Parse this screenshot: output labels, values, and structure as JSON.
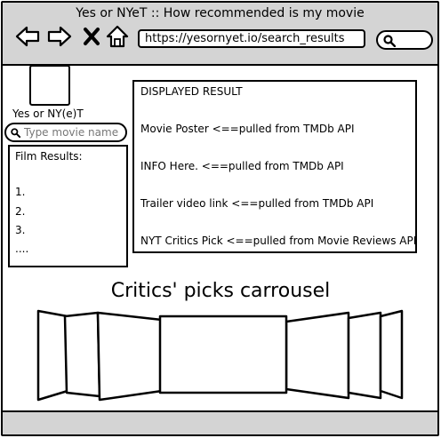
{
  "browser": {
    "title": "Yes or NYeT :: How recommended is my movie",
    "url": "https://yesornyet.io/search_results",
    "icons": [
      "back-arrow-icon",
      "forward-arrow-icon",
      "close-icon",
      "home-icon",
      "search-icon"
    ]
  },
  "sidebar": {
    "logo_text": "Yes or NY(e)T",
    "search_placeholder": "Type movie name",
    "results_title": "Film Results:",
    "results": [
      "1.",
      "2.",
      "3.",
      "...."
    ]
  },
  "display": {
    "heading": "DISPLAYED RESULT",
    "lines": [
      "Movie Poster   <==pulled from TMDb API",
      "INFO Here.  <==pulled from TMDb API",
      "Trailer video link <==pulled from TMDb API",
      "NYT Critics Pick  <==pulled from Movie Reviews API"
    ]
  },
  "carousel": {
    "title": "Critics' picks carrousel"
  }
}
